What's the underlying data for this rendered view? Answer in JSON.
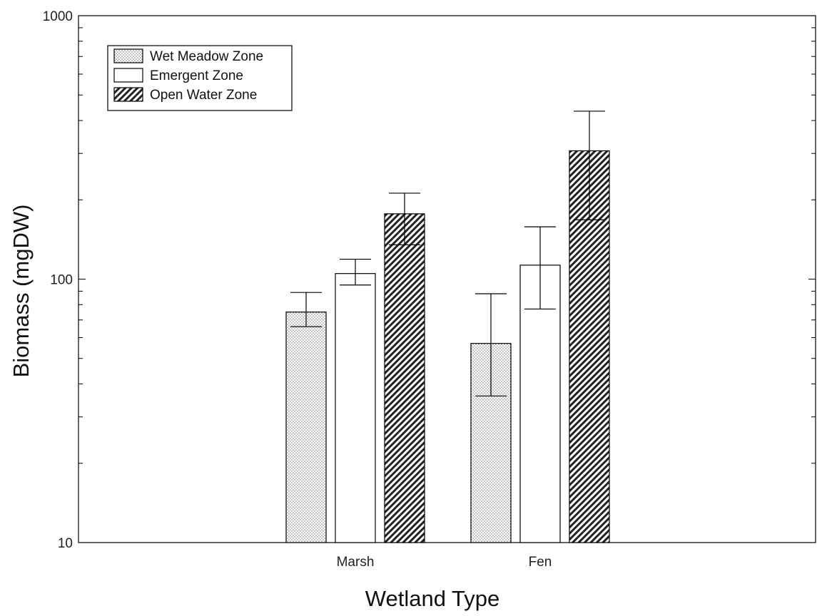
{
  "chart_data": {
    "type": "bar",
    "title": "",
    "xlabel": "Wetland Type",
    "ylabel": "Biomass (mgDW)",
    "y_scale": "log",
    "ylim": [
      10,
      1000
    ],
    "y_tick_labels": [
      "10",
      "100",
      "1000"
    ],
    "categories": [
      "Marsh",
      "Fen"
    ],
    "series": [
      {
        "name": "Wet Meadow Zone",
        "pattern": "dots",
        "values": [
          75,
          57
        ],
        "error_low": [
          66,
          36
        ],
        "error_high": [
          89,
          88
        ]
      },
      {
        "name": "Emergent Zone",
        "pattern": "none",
        "values": [
          105,
          113
        ],
        "error_low": [
          95,
          77
        ],
        "error_high": [
          119,
          158
        ]
      },
      {
        "name": "Open Water Zone",
        "pattern": "hatch",
        "values": [
          177,
          307
        ],
        "error_low": [
          135,
          168
        ],
        "error_high": [
          212,
          434
        ]
      }
    ],
    "grid": false,
    "legend_position": "top-left",
    "colors": {
      "fill": "#ffffff",
      "stroke": "#000000",
      "dots": "#777777",
      "hatch": "#222222"
    }
  }
}
